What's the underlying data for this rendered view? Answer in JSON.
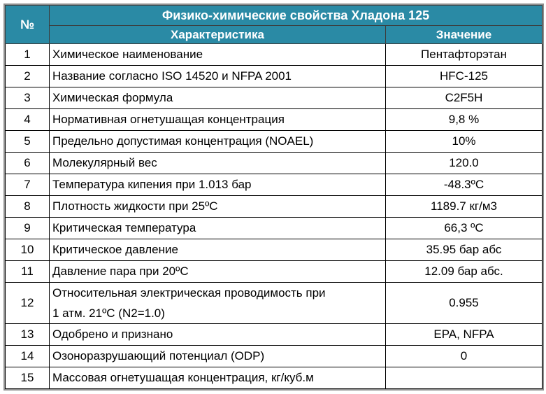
{
  "table": {
    "title": "Физико-химические свойства Хладона 125",
    "headers": {
      "number": "№",
      "characteristic": "Характеристика",
      "value": "Значение"
    },
    "rows": [
      {
        "n": "1",
        "characteristic": "Химическое наименование",
        "value": "Пентафторэтан"
      },
      {
        "n": "2",
        "characteristic": "Название согласно ISO 14520 и NFPA 2001",
        "value": "HFC-125"
      },
      {
        "n": "3",
        "characteristic": "Химическая формула",
        "value": "C2F5H"
      },
      {
        "n": "4",
        "characteristic": "Нормативная огнетушащая концентрация",
        "value": "9,8 %"
      },
      {
        "n": "5",
        "characteristic": "Предельно допустимая концентрация (NOAEL)",
        "value": "10%"
      },
      {
        "n": "6",
        "characteristic": "Молекулярный вес",
        "value": "120.0"
      },
      {
        "n": "7",
        "characteristic": "Температура кипения при 1.013 бар",
        "value": "-48.3ºС"
      },
      {
        "n": "8",
        "characteristic": "Плотность жидкости при 25ºС",
        "value": "1189.7 кг/м3"
      },
      {
        "n": "9",
        "characteristic": "Критическая температура",
        "value": "66,3 ºС"
      },
      {
        "n": "10",
        "characteristic": "Критическое давление",
        "value": "35.95 бар абс"
      },
      {
        "n": "11",
        "characteristic": "Давление пара при 20ºС",
        "value": "12.09 бар абс."
      },
      {
        "n": "12",
        "characteristic_line1": "Относительная электрическая проводимость при",
        "characteristic_line2": "1 атм. 21ºС (N2=1.0)",
        "value": "0.955"
      },
      {
        "n": "13",
        "characteristic": "Одобрено и признано",
        "value": "EPA, NFPA"
      },
      {
        "n": "14",
        "characteristic": "Озоноразрушающий потенциал (ODP)",
        "value": "0"
      },
      {
        "n": "15",
        "characteristic": "Массовая огнетушащая концентрация, кг/куб.м",
        "value": ""
      }
    ]
  }
}
